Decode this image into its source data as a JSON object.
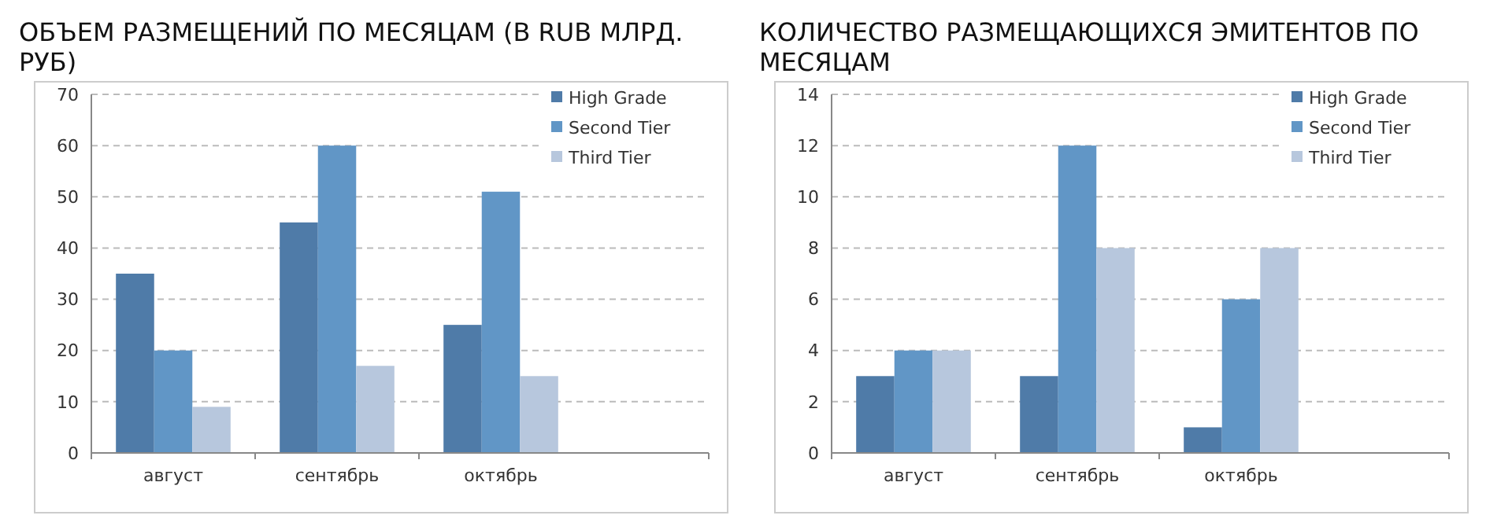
{
  "chart_data": [
    {
      "type": "bar",
      "title": "ОБЪЕМ РАЗМЕЩЕНИЙ ПО МЕСЯЦАМ (В RUB МЛРД. РУБ)",
      "categories": [
        "август",
        "сентябрь",
        "октябрь"
      ],
      "series": [
        {
          "name": "High Grade",
          "color": "#4f7ba8",
          "values": [
            35,
            45,
            25
          ]
        },
        {
          "name": "Second Tier",
          "color": "#6196c6",
          "values": [
            20,
            60,
            51
          ]
        },
        {
          "name": "Third Tier",
          "color": "#b7c7dd",
          "values": [
            9,
            17,
            15
          ]
        }
      ],
      "ylim": [
        0,
        70
      ],
      "yticks": [
        0,
        10,
        20,
        30,
        40,
        50,
        60,
        70
      ],
      "grid": "y",
      "legend": "top right"
    },
    {
      "type": "bar",
      "title": "КОЛИЧЕСТВО РАЗМЕЩАЮЩИХСЯ ЭМИТЕНТОВ ПО МЕСЯЦАМ",
      "categories": [
        "август",
        "сентябрь",
        "октябрь"
      ],
      "series": [
        {
          "name": "High Grade",
          "color": "#4f7ba8",
          "values": [
            3,
            3,
            1
          ]
        },
        {
          "name": "Second Tier",
          "color": "#6196c6",
          "values": [
            4,
            12,
            6
          ]
        },
        {
          "name": "Third Tier",
          "color": "#b7c7dd",
          "values": [
            4,
            8,
            8
          ]
        }
      ],
      "ylim": [
        0,
        14
      ],
      "yticks": [
        0,
        2,
        4,
        6,
        8,
        10,
        12,
        14
      ],
      "grid": "y",
      "legend": "top right"
    }
  ]
}
